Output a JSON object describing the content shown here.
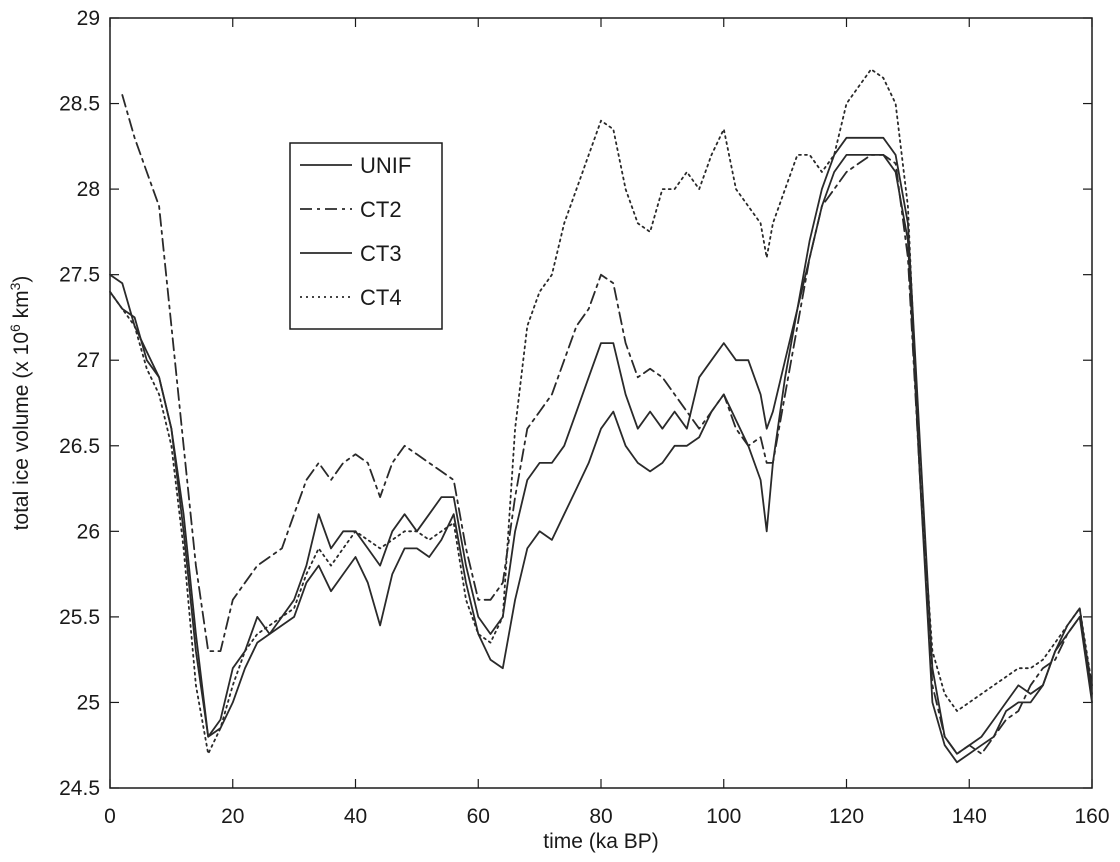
{
  "chart_data": {
    "type": "line",
    "xlabel": "time (ka BP)",
    "ylabel": {
      "main": "total ice volume (x 10",
      "sup": "6",
      "unit": " km",
      "unit_sup": "3",
      "close": ")"
    },
    "xlim": [
      0,
      160
    ],
    "ylim": [
      24.5,
      29
    ],
    "x_ticks": [
      0,
      20,
      40,
      60,
      80,
      100,
      120,
      140,
      160
    ],
    "y_ticks": [
      24.5,
      25,
      25.5,
      26,
      26.5,
      27,
      27.5,
      28,
      28.5,
      29
    ],
    "x_tick_labels": [
      "0",
      "20",
      "40",
      "60",
      "80",
      "100",
      "120",
      "140",
      "160"
    ],
    "y_tick_labels": [
      "24.5",
      "25",
      "25.5",
      "26",
      "26.5",
      "27",
      "27.5",
      "28",
      "28.5",
      "29"
    ],
    "grid": false,
    "legend_position": "upper-left",
    "series": [
      {
        "name": "UNIF",
        "style": "solid",
        "color": "#2a2a2a",
        "x": [
          0,
          2,
          4,
          6,
          8,
          10,
          12,
          14,
          16,
          18,
          20,
          22,
          24,
          26,
          28,
          30,
          32,
          34,
          36,
          38,
          40,
          42,
          44,
          46,
          48,
          50,
          52,
          54,
          56,
          58,
          60,
          62,
          64,
          66,
          68,
          70,
          72,
          74,
          76,
          78,
          80,
          82,
          84,
          86,
          88,
          90,
          92,
          94,
          96,
          98,
          100,
          102,
          104,
          106,
          107,
          108,
          110,
          112,
          114,
          116,
          118,
          120,
          122,
          124,
          126,
          128,
          130,
          132,
          134,
          136,
          138,
          140,
          142,
          144,
          146,
          148,
          150,
          152,
          154,
          156,
          158,
          160
        ],
        "values": [
          27.4,
          27.3,
          27.25,
          27.0,
          26.9,
          26.6,
          26.1,
          25.4,
          24.8,
          24.9,
          25.2,
          25.3,
          25.5,
          25.4,
          25.5,
          25.6,
          25.8,
          26.1,
          25.9,
          26.0,
          26.0,
          25.9,
          25.8,
          26.0,
          26.1,
          26.0,
          26.1,
          26.2,
          26.2,
          25.8,
          25.5,
          25.4,
          25.5,
          26.0,
          26.3,
          26.4,
          26.4,
          26.5,
          26.7,
          26.9,
          27.1,
          27.1,
          26.8,
          26.6,
          26.7,
          26.6,
          26.7,
          26.6,
          26.9,
          27.0,
          27.1,
          27.0,
          27.0,
          26.8,
          26.6,
          26.7,
          27.0,
          27.3,
          27.7,
          28.0,
          28.2,
          28.3,
          28.3,
          28.3,
          28.3,
          28.2,
          27.8,
          26.5,
          25.2,
          24.8,
          24.7,
          24.75,
          24.8,
          24.9,
          25.0,
          25.1,
          25.05,
          25.1,
          25.3,
          25.4,
          25.5,
          25.0
        ]
      },
      {
        "name": "CT2",
        "style": "dashdot",
        "color": "#2a2a2a",
        "x": [
          2,
          4,
          6,
          8,
          10,
          12,
          14,
          16,
          18,
          20,
          22,
          24,
          26,
          28,
          30,
          32,
          34,
          36,
          38,
          40,
          42,
          44,
          46,
          48,
          50,
          52,
          54,
          56,
          58,
          60,
          62,
          64,
          66,
          68,
          70,
          72,
          74,
          76,
          78,
          80,
          82,
          84,
          86,
          88,
          90,
          92,
          94,
          96,
          98,
          100,
          102,
          104,
          106,
          107,
          108,
          110,
          112,
          114,
          116,
          118,
          120,
          122,
          124,
          126,
          128,
          130,
          132,
          134,
          136,
          138,
          140,
          142,
          144,
          146,
          148,
          150,
          152,
          154,
          156,
          158,
          160
        ],
        "values": [
          28.55,
          28.3,
          28.1,
          27.9,
          27.2,
          26.5,
          25.8,
          25.3,
          25.3,
          25.6,
          25.7,
          25.8,
          25.85,
          25.9,
          26.1,
          26.3,
          26.4,
          26.3,
          26.4,
          26.45,
          26.4,
          26.2,
          26.4,
          26.5,
          26.45,
          26.4,
          26.35,
          26.3,
          25.9,
          25.6,
          25.6,
          25.7,
          26.2,
          26.6,
          26.7,
          26.8,
          27.0,
          27.2,
          27.3,
          27.5,
          27.45,
          27.1,
          26.9,
          26.95,
          26.9,
          26.8,
          26.7,
          26.6,
          26.7,
          26.8,
          26.6,
          26.5,
          26.55,
          26.4,
          26.4,
          26.8,
          27.2,
          27.6,
          27.9,
          28.0,
          28.1,
          28.15,
          28.2,
          28.2,
          28.15,
          27.6,
          26.3,
          25.1,
          24.8,
          24.7,
          24.75,
          24.7,
          24.8,
          24.9,
          24.95,
          25.1,
          25.2,
          25.25,
          25.4,
          25.5,
          25.1
        ]
      },
      {
        "name": "CT3",
        "style": "solid",
        "color": "#2a2a2a",
        "x": [
          0,
          2,
          4,
          6,
          8,
          10,
          12,
          14,
          16,
          18,
          20,
          22,
          24,
          26,
          28,
          30,
          32,
          34,
          36,
          38,
          40,
          42,
          44,
          46,
          48,
          50,
          52,
          54,
          56,
          58,
          60,
          62,
          64,
          66,
          68,
          70,
          72,
          74,
          76,
          78,
          80,
          82,
          84,
          86,
          88,
          90,
          92,
          94,
          96,
          98,
          100,
          102,
          104,
          106,
          107,
          108,
          110,
          112,
          114,
          116,
          118,
          120,
          122,
          124,
          126,
          128,
          130,
          132,
          134,
          136,
          138,
          140,
          142,
          144,
          146,
          148,
          150,
          152,
          154,
          156,
          158,
          160
        ],
        "values": [
          27.5,
          27.45,
          27.2,
          27.05,
          26.9,
          26.6,
          26.0,
          25.3,
          24.8,
          24.85,
          25.0,
          25.2,
          25.35,
          25.4,
          25.45,
          25.5,
          25.7,
          25.8,
          25.65,
          25.75,
          25.85,
          25.7,
          25.45,
          25.75,
          25.9,
          25.9,
          25.85,
          25.95,
          26.1,
          25.7,
          25.4,
          25.25,
          25.2,
          25.6,
          25.9,
          26.0,
          25.95,
          26.1,
          26.25,
          26.4,
          26.6,
          26.7,
          26.5,
          26.4,
          26.35,
          26.4,
          26.5,
          26.5,
          26.55,
          26.7,
          26.8,
          26.65,
          26.5,
          26.3,
          26.0,
          26.4,
          26.9,
          27.3,
          27.6,
          27.9,
          28.1,
          28.2,
          28.2,
          28.2,
          28.2,
          28.1,
          27.7,
          26.3,
          25.0,
          24.75,
          24.65,
          24.7,
          24.75,
          24.8,
          24.95,
          25.0,
          25.0,
          25.1,
          25.3,
          25.45,
          25.55,
          25.05
        ]
      },
      {
        "name": "CT4",
        "style": "dotted",
        "color": "#2a2a2a",
        "x": [
          0,
          2,
          4,
          6,
          8,
          10,
          12,
          14,
          16,
          18,
          20,
          22,
          24,
          26,
          28,
          30,
          32,
          34,
          36,
          38,
          40,
          42,
          44,
          46,
          48,
          50,
          52,
          54,
          56,
          58,
          60,
          62,
          64,
          66,
          68,
          70,
          72,
          74,
          76,
          78,
          80,
          82,
          84,
          86,
          88,
          90,
          92,
          94,
          96,
          98,
          100,
          102,
          104,
          106,
          107,
          108,
          110,
          112,
          114,
          116,
          118,
          120,
          122,
          124,
          126,
          128,
          130,
          132,
          134,
          136,
          138,
          140,
          142,
          144,
          146,
          148,
          150,
          152,
          154,
          156,
          158,
          160
        ],
        "values": [
          27.4,
          27.3,
          27.2,
          26.95,
          26.8,
          26.5,
          25.9,
          25.1,
          24.7,
          24.85,
          25.1,
          25.3,
          25.4,
          25.45,
          25.5,
          25.55,
          25.75,
          25.9,
          25.8,
          25.9,
          26.0,
          25.95,
          25.9,
          25.95,
          26.0,
          26.0,
          25.95,
          26.0,
          26.05,
          25.6,
          25.4,
          25.35,
          25.5,
          26.6,
          27.2,
          27.4,
          27.5,
          27.8,
          28.0,
          28.2,
          28.4,
          28.35,
          28.0,
          27.8,
          27.75,
          28.0,
          28.0,
          28.1,
          28.0,
          28.2,
          28.35,
          28.0,
          27.9,
          27.8,
          27.6,
          27.8,
          28.0,
          28.2,
          28.2,
          28.1,
          28.2,
          28.5,
          28.6,
          28.7,
          28.65,
          28.5,
          27.9,
          26.3,
          25.3,
          25.05,
          24.95,
          25.0,
          25.05,
          25.1,
          25.15,
          25.2,
          25.2,
          25.25,
          25.35,
          25.45,
          25.55,
          25.1
        ]
      }
    ]
  }
}
